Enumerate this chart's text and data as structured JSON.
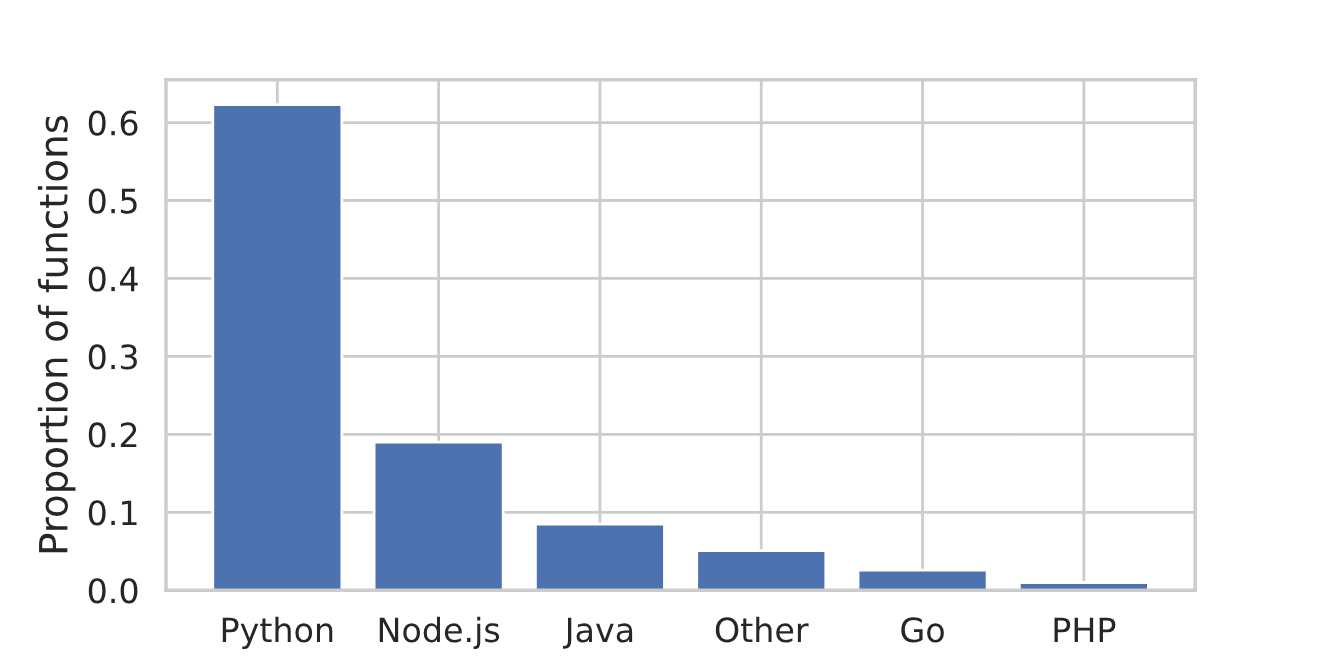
{
  "chart_data": {
    "type": "bar",
    "ylabel": "Proportion of functions",
    "categories": [
      "Python",
      "Node.js",
      "Java",
      "Other",
      "Go",
      "PHP"
    ],
    "values": [
      0.623,
      0.19,
      0.085,
      0.051,
      0.026,
      0.01
    ],
    "color": "#4c72b0",
    "ylim": [
      0,
      0.655
    ],
    "yticks": [
      {
        "value": 0,
        "label": "0.0"
      },
      0.1,
      0.2,
      0.3,
      0.4,
      0.5,
      0.6
    ],
    "grid": true,
    "legend": false
  }
}
